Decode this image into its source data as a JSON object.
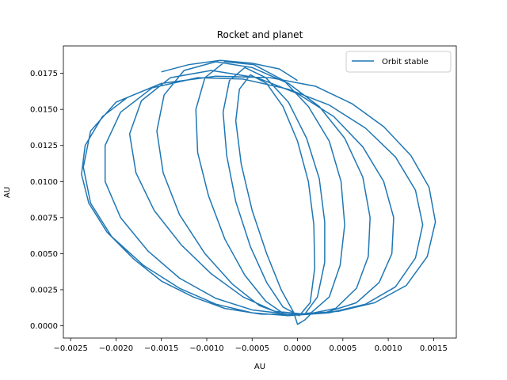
{
  "chart_data": {
    "type": "line",
    "title": "Rocket and planet",
    "xlabel": "AU",
    "ylabel": "AU",
    "xlim": [
      -0.00258,
      0.00175
    ],
    "ylim": [
      -0.00085,
      0.0194
    ],
    "xticks": [
      -0.0025,
      -0.002,
      -0.0015,
      -0.001,
      -0.0005,
      0.0,
      0.0005,
      0.001,
      0.0015
    ],
    "xtick_labels": [
      "−0.0025",
      "−0.0020",
      "−0.0015",
      "−0.0010",
      "−0.0005",
      "0.0000",
      "0.0005",
      "0.0010",
      "0.0015"
    ],
    "yticks": [
      0.0,
      0.0025,
      0.005,
      0.0075,
      0.01,
      0.0125,
      0.015,
      0.0175
    ],
    "ytick_labels": [
      "0.0000",
      "0.0025",
      "0.0050",
      "0.0075",
      "0.0100",
      "0.0125",
      "0.0150",
      "0.0175"
    ],
    "grid": false,
    "legend": {
      "position": "top-right"
    },
    "series": [
      {
        "name": "Orbit stable",
        "color": "#1f77b4",
        "points": [
          [
            -0.00188,
            0.0158
          ],
          [
            -0.00215,
            0.0145
          ],
          [
            -0.00234,
            0.0125
          ],
          [
            -0.00238,
            0.0105
          ],
          [
            -0.0023,
            0.0085
          ],
          [
            -0.0021,
            0.0065
          ],
          [
            -0.0018,
            0.0046
          ],
          [
            -0.0015,
            0.0031
          ],
          [
            -0.00115,
            0.002
          ],
          [
            -0.0008,
            0.0012
          ],
          [
            -0.0004,
            0.0008
          ],
          [
            0.0,
            0.0008
          ],
          [
            0.00045,
            0.001
          ],
          [
            0.00085,
            0.0016
          ],
          [
            0.0012,
            0.0028
          ],
          [
            0.00143,
            0.0048
          ],
          [
            0.00152,
            0.0072
          ],
          [
            0.00145,
            0.0096
          ],
          [
            0.00125,
            0.0118
          ],
          [
            0.00095,
            0.0138
          ],
          [
            0.0006,
            0.0154
          ],
          [
            0.0002,
            0.0166
          ],
          [
            -0.0003,
            0.0172
          ],
          [
            -0.0009,
            0.0173
          ],
          [
            -0.0015,
            0.0168
          ],
          [
            -0.002,
            0.0155
          ],
          [
            -0.00228,
            0.0135
          ],
          [
            -0.00236,
            0.011
          ],
          [
            -0.00228,
            0.0085
          ],
          [
            -0.00205,
            0.0062
          ],
          [
            -0.0017,
            0.0042
          ],
          [
            -0.0013,
            0.0026
          ],
          [
            -0.0009,
            0.0015
          ],
          [
            -0.0005,
            0.0009
          ],
          [
            -0.0001,
            0.0007
          ],
          [
            0.00035,
            0.0009
          ],
          [
            0.00075,
            0.0015
          ],
          [
            0.00108,
            0.0027
          ],
          [
            0.0013,
            0.0047
          ],
          [
            0.00138,
            0.007
          ],
          [
            0.0013,
            0.0094
          ],
          [
            0.00108,
            0.0117
          ],
          [
            0.00075,
            0.0137
          ],
          [
            0.00035,
            0.0153
          ],
          [
            -0.0001,
            0.0164
          ],
          [
            -0.0006,
            0.0171
          ],
          [
            -0.0011,
            0.0172
          ],
          [
            -0.0016,
            0.0165
          ],
          [
            -0.00195,
            0.0148
          ],
          [
            -0.00212,
            0.0125
          ],
          [
            -0.00212,
            0.01
          ],
          [
            -0.00195,
            0.0075
          ],
          [
            -0.00165,
            0.0052
          ],
          [
            -0.0013,
            0.0033
          ],
          [
            -0.0009,
            0.0019
          ],
          [
            -0.0005,
            0.0011
          ],
          [
            -0.0001,
            0.0008
          ],
          [
            0.0003,
            0.0009
          ],
          [
            0.00065,
            0.0016
          ],
          [
            0.0009,
            0.003
          ],
          [
            0.00104,
            0.005
          ],
          [
            0.00106,
            0.0075
          ],
          [
            0.00095,
            0.01
          ],
          [
            0.00072,
            0.0124
          ],
          [
            0.0004,
            0.0145
          ],
          [
            0.0,
            0.0161
          ],
          [
            -0.00045,
            0.0172
          ],
          [
            -0.00095,
            0.0177
          ],
          [
            -0.0014,
            0.0172
          ],
          [
            -0.00172,
            0.0156
          ],
          [
            -0.00185,
            0.0133
          ],
          [
            -0.00178,
            0.0106
          ],
          [
            -0.00158,
            0.008
          ],
          [
            -0.00128,
            0.0056
          ],
          [
            -0.00095,
            0.0036
          ],
          [
            -0.0006,
            0.002
          ],
          [
            -0.00025,
            0.001
          ],
          [
            0.0001,
            0.0008
          ],
          [
            0.00042,
            0.0012
          ],
          [
            0.00065,
            0.0026
          ],
          [
            0.00078,
            0.0048
          ],
          [
            0.0008,
            0.0075
          ],
          [
            0.00072,
            0.0103
          ],
          [
            0.00052,
            0.013
          ],
          [
            0.00024,
            0.0152
          ],
          [
            -0.0001,
            0.0168
          ],
          [
            -0.0005,
            0.0179
          ],
          [
            -0.0009,
            0.0183
          ],
          [
            -0.00125,
            0.0177
          ],
          [
            -0.00147,
            0.016
          ],
          [
            -0.00155,
            0.0135
          ],
          [
            -0.00148,
            0.0106
          ],
          [
            -0.0013,
            0.0077
          ],
          [
            -0.00102,
            0.005
          ],
          [
            -0.00072,
            0.0029
          ],
          [
            -0.00042,
            0.0014
          ],
          [
            -0.00012,
            0.0007
          ],
          [
            0.00015,
            0.0009
          ],
          [
            0.00035,
            0.002
          ],
          [
            0.00047,
            0.0042
          ],
          [
            0.00052,
            0.007
          ],
          [
            0.00048,
            0.01
          ],
          [
            0.00035,
            0.0128
          ],
          [
            0.00012,
            0.0152
          ],
          [
            -0.00015,
            0.017
          ],
          [
            -0.00048,
            0.0181
          ],
          [
            -0.0008,
            0.0183
          ],
          [
            -0.00102,
            0.0172
          ],
          [
            -0.00112,
            0.015
          ],
          [
            -0.0011,
            0.012
          ],
          [
            -0.00098,
            0.009
          ],
          [
            -0.0008,
            0.006
          ],
          [
            -0.00058,
            0.0035
          ],
          [
            -0.00035,
            0.0017
          ],
          [
            -0.00012,
            0.0007
          ],
          [
            8e-05,
            0.0008
          ],
          [
            0.00022,
            0.002
          ],
          [
            0.0003,
            0.0044
          ],
          [
            0.0003,
            0.0072
          ],
          [
            0.00024,
            0.0102
          ],
          [
            0.0001,
            0.013
          ],
          [
            -0.0001,
            0.0155
          ],
          [
            -0.00035,
            0.0172
          ],
          [
            -0.00058,
            0.0179
          ],
          [
            -0.00075,
            0.017
          ],
          [
            -0.00082,
            0.0148
          ],
          [
            -0.00078,
            0.0118
          ],
          [
            -0.00068,
            0.0086
          ],
          [
            -0.00052,
            0.0055
          ],
          [
            -0.00034,
            0.003
          ],
          [
            -0.00016,
            0.0013
          ],
          [
            2e-05,
            0.0007
          ],
          [
            0.00014,
            0.0016
          ],
          [
            0.00019,
            0.004
          ],
          [
            0.00018,
            0.007
          ],
          [
            0.00012,
            0.01
          ],
          [
            0.0,
            0.0128
          ],
          [
            -0.00016,
            0.0152
          ],
          [
            -0.00034,
            0.0168
          ],
          [
            -0.00052,
            0.0174
          ],
          [
            -0.00064,
            0.0164
          ],
          [
            -0.00068,
            0.0142
          ],
          [
            -0.00062,
            0.0112
          ],
          [
            -0.0005,
            0.008
          ],
          [
            -0.00034,
            0.005
          ],
          [
            -0.00018,
            0.0025
          ],
          [
            -4e-05,
            0.0009
          ],
          [
            0.0,
            0.0001
          ],
          [
            8e-05,
            0.0004
          ],
          [
            0.00016,
            0.0009
          ]
        ]
      },
      {
        "name": "",
        "color": "#1f77b4",
        "points": [
          [
            -0.0015,
            0.0176
          ],
          [
            -0.0012,
            0.0181
          ],
          [
            -0.00085,
            0.0184
          ],
          [
            -0.0005,
            0.0182
          ],
          [
            -0.0002,
            0.0178
          ],
          [
            0.0,
            0.017
          ]
        ]
      }
    ]
  }
}
